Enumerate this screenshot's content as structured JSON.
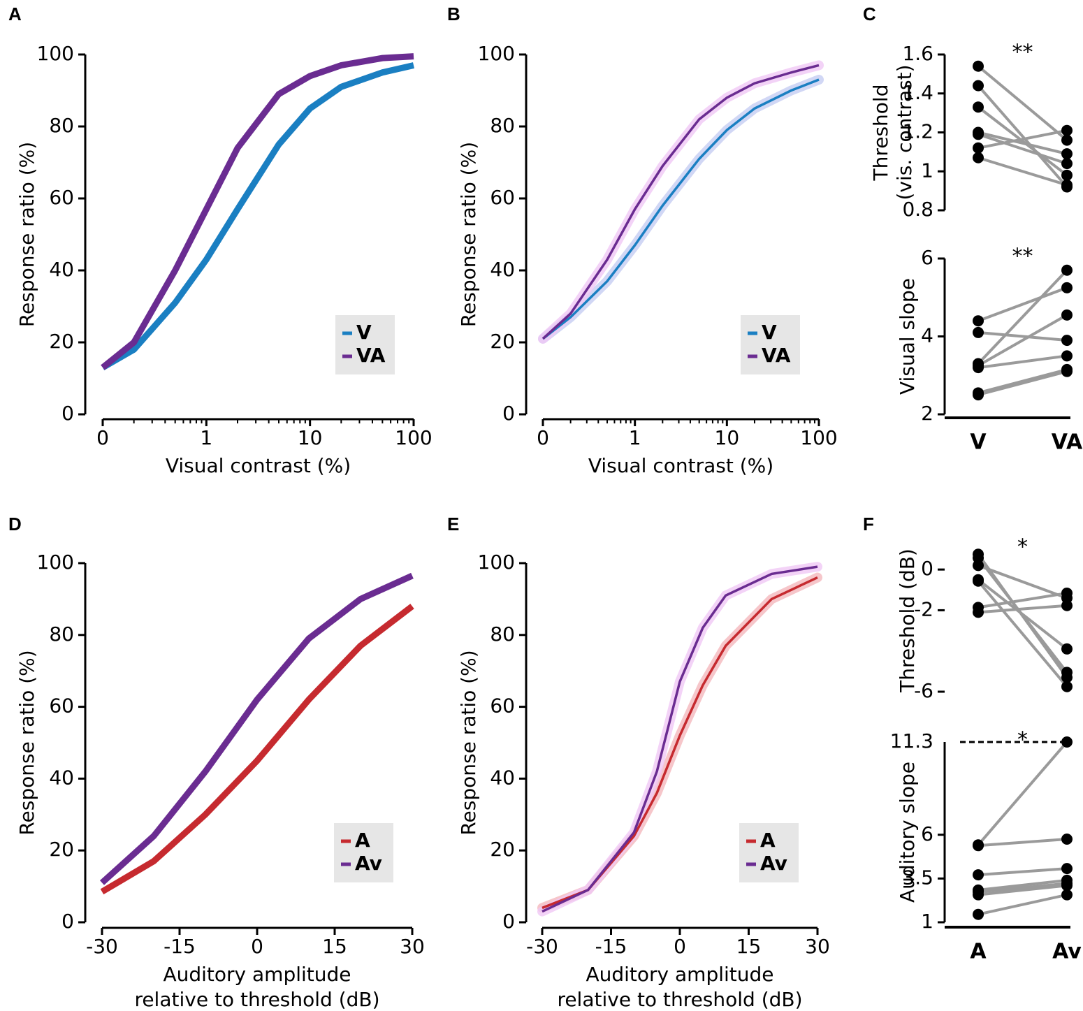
{
  "chart_data": [
    {
      "panel": "A",
      "type": "line",
      "xscale": "log",
      "xlabel": [
        "Visual contrast (%)"
      ],
      "ylabel": [
        "Response ratio (%)"
      ],
      "x": [
        0.1,
        0.2,
        0.5,
        1,
        2,
        5,
        10,
        20,
        50,
        100
      ],
      "xlim": [
        0.1,
        100
      ],
      "xticks": [
        {
          "value": 0.1,
          "label": "0"
        },
        1,
        10,
        100
      ],
      "ylim": [
        0,
        100
      ],
      "yticks": [
        0,
        20,
        40,
        60,
        80,
        100
      ],
      "legend": "lower right",
      "line_style": "thick",
      "series": [
        {
          "name": "V",
          "color": "#1a7fc2",
          "values": [
            13,
            18,
            31,
            43,
            57,
            75,
            85,
            91,
            95,
            97
          ]
        },
        {
          "name": "VA",
          "color": "#6a2c91",
          "values": [
            13,
            20,
            40,
            57,
            74,
            89,
            94,
            97,
            99,
            99.5
          ]
        }
      ]
    },
    {
      "panel": "B",
      "type": "line",
      "xscale": "log",
      "xlabel": [
        "Visual contrast (%)"
      ],
      "ylabel": [
        "Response ratio (%)"
      ],
      "x": [
        0.1,
        0.2,
        0.5,
        1,
        2,
        5,
        10,
        20,
        50,
        100
      ],
      "xlim": [
        0.1,
        100
      ],
      "xticks": [
        {
          "value": 0.1,
          "label": "0"
        },
        1,
        10,
        100
      ],
      "ylim": [
        0,
        100
      ],
      "yticks": [
        0,
        20,
        40,
        60,
        80,
        100
      ],
      "legend": "lower right",
      "line_style": "thin-halo",
      "series": [
        {
          "name": "V",
          "color": "#1a7fc2",
          "halo": "#c5cdf2",
          "values": [
            21,
            27,
            37,
            47,
            58,
            71,
            79,
            85,
            90,
            93
          ]
        },
        {
          "name": "VA",
          "color": "#6a2c91",
          "halo": "#f0c8f5",
          "values": [
            21,
            28,
            43,
            57,
            69,
            82,
            88,
            92,
            95,
            97
          ]
        }
      ]
    },
    {
      "panel": "C",
      "type": "paired",
      "ylabel": [
        "Threshold",
        "(vis. contrast)"
      ],
      "annotation": "**",
      "values": [
        [
          1.54,
          1.44,
          1.33,
          1.2,
          1.19,
          1.12,
          1.07
        ],
        [
          1.16,
          0.92,
          0.98,
          1.09,
          1.04,
          1.21,
          0.93
        ]
      ],
      "ylim": [
        0.8,
        1.6
      ],
      "yticks": [
        0.8,
        1,
        1.2,
        1.4,
        1.6
      ]
    },
    {
      "type": "paired",
      "ylabel": [
        "Visual slope"
      ],
      "annotation": "**",
      "categories": [
        "V",
        "VA"
      ],
      "values": [
        [
          4.4,
          4.1,
          3.3,
          3.25,
          3.2,
          2.55,
          2.5
        ],
        [
          5.25,
          3.9,
          5.7,
          4.55,
          3.5,
          3.15,
          3.1
        ]
      ],
      "ylim": [
        2,
        6
      ],
      "yticks": [
        2,
        4,
        6
      ]
    },
    {
      "panel": "D",
      "type": "line",
      "xlabel": [
        "Auditory amplitude",
        "relative to threshold (dB)"
      ],
      "ylabel": [
        "Response ratio (%)"
      ],
      "x": [
        -30,
        -20,
        -10,
        0,
        10,
        20,
        30
      ],
      "xlim": [
        -30,
        30
      ],
      "xticks": [
        -30,
        -15,
        0,
        15,
        30
      ],
      "ylim": [
        0,
        100
      ],
      "yticks": [
        0,
        20,
        40,
        60,
        80,
        100
      ],
      "legend": "lower right",
      "line_style": "thick",
      "series": [
        {
          "name": "A",
          "color": "#c62a2f",
          "values": [
            8.5,
            17,
            30,
            45,
            62,
            77,
            88
          ]
        },
        {
          "name": "Av",
          "color": "#6a2c91",
          "values": [
            11,
            24,
            42,
            62,
            79,
            90,
            96.5
          ]
        }
      ]
    },
    {
      "panel": "E",
      "type": "line",
      "xlabel": [
        "Auditory amplitude",
        "relative to threshold (dB)"
      ],
      "ylabel": [
        "Response ratio (%)"
      ],
      "x": [
        -30,
        -20,
        -10,
        -5,
        0,
        5,
        10,
        20,
        30
      ],
      "xlim": [
        -30,
        30
      ],
      "xticks": [
        -30,
        -15,
        0,
        15,
        30
      ],
      "ylim": [
        0,
        100
      ],
      "yticks": [
        0,
        20,
        40,
        60,
        80,
        100
      ],
      "legend": "lower right",
      "line_style": "thin-halo",
      "series": [
        {
          "name": "A",
          "color": "#c62a2f",
          "halo": "#f4b8bd",
          "values": [
            4,
            9,
            24,
            36,
            52,
            66,
            77,
            90,
            96
          ]
        },
        {
          "name": "Av",
          "color": "#6a2c91",
          "halo": "#f0c8f5",
          "values": [
            3,
            9,
            25,
            42,
            67,
            82,
            91,
            97,
            99
          ]
        }
      ]
    },
    {
      "panel": "F",
      "type": "paired",
      "ylabel": [
        "Threshold (dB)"
      ],
      "annotation": "*",
      "values": [
        [
          0.75,
          0.57,
          0.2,
          -0.5,
          -0.57,
          -1.86,
          -2.1
        ],
        [
          -5.3,
          -5.05,
          -1.4,
          -3.9,
          -5.75,
          -1.16,
          -1.77
        ]
      ],
      "ylim": [
        -6,
        1
      ],
      "yticks": [
        0,
        -2,
        -6
      ]
    },
    {
      "type": "paired",
      "ylabel": [
        "Auditory slope"
      ],
      "annotation": "*",
      "categories": [
        "A",
        "Av"
      ],
      "dashed_top_tick": true,
      "values": [
        [
          5.42,
          5.38,
          3.71,
          2.84,
          2.73,
          2.57,
          1.45
        ],
        [
          11.3,
          5.75,
          4.07,
          3.4,
          3.22,
          3.1,
          2.57
        ]
      ],
      "ylim": [
        1,
        11.3
      ],
      "yticks": [
        1,
        3.5,
        6,
        11.3
      ]
    }
  ]
}
